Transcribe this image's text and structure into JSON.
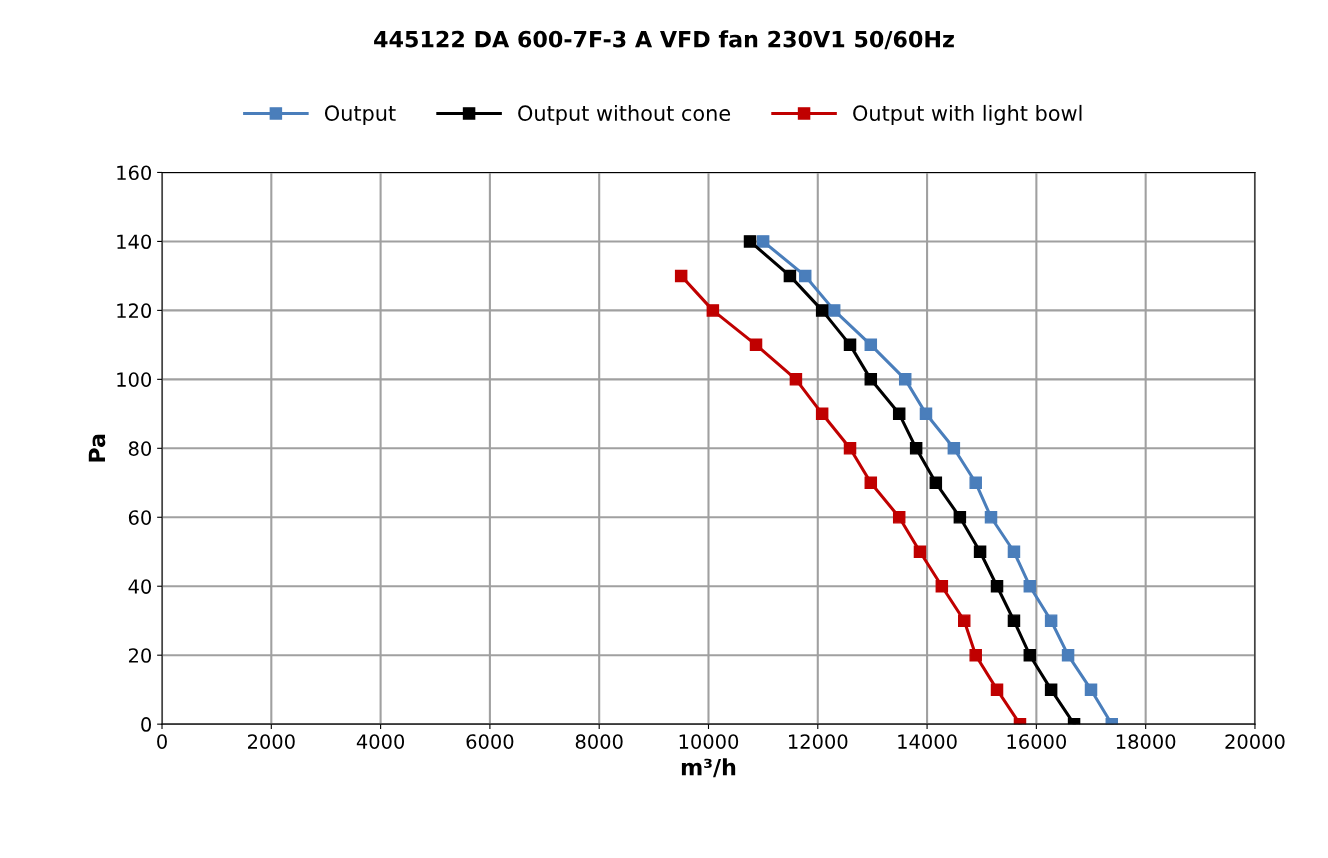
{
  "chart_data": {
    "type": "line",
    "title": "445122 DA 600-7F-3 A VFD fan 230V1 50/60Hz",
    "xlabel": "m³/h",
    "ylabel": "Pa",
    "xlim": [
      0,
      20000
    ],
    "xticks": [
      0,
      2000,
      4000,
      6000,
      8000,
      10000,
      12000,
      14000,
      16000,
      18000,
      20000
    ],
    "ylim": [
      0,
      160
    ],
    "yticks": [
      0,
      20,
      40,
      60,
      80,
      100,
      120,
      140,
      160
    ],
    "grid": true,
    "legend": "top",
    "marker": "square",
    "line_style": "solid",
    "series": [
      {
        "name": "Output",
        "color": "#4a7ebb",
        "x": [
          11000,
          11770,
          12300,
          12970,
          13600,
          13980,
          14490,
          14890,
          15170,
          15590,
          15880,
          16270,
          16580,
          17000,
          17380
        ],
        "values": [
          140,
          130,
          120,
          110,
          100,
          90,
          80,
          70,
          60,
          50,
          40,
          30,
          20,
          10,
          0
        ]
      },
      {
        "name": "Output without cone",
        "color": "#000000",
        "x": [
          10760,
          11490,
          12080,
          12590,
          12970,
          13490,
          13800,
          14160,
          14600,
          14970,
          15280,
          15590,
          15880,
          16270,
          16690
        ],
        "values": [
          140,
          130,
          120,
          110,
          100,
          90,
          80,
          70,
          60,
          50,
          40,
          30,
          20,
          10,
          0
        ]
      },
      {
        "name": "Output with light bowl",
        "color": "#c00000",
        "x": [
          9500,
          10080,
          10870,
          11600,
          12080,
          12590,
          12970,
          13490,
          13870,
          14270,
          14680,
          14890,
          15280,
          15700
        ],
        "values": [
          130,
          120,
          110,
          100,
          90,
          80,
          70,
          60,
          50,
          40,
          30,
          20,
          10,
          0
        ]
      }
    ]
  }
}
